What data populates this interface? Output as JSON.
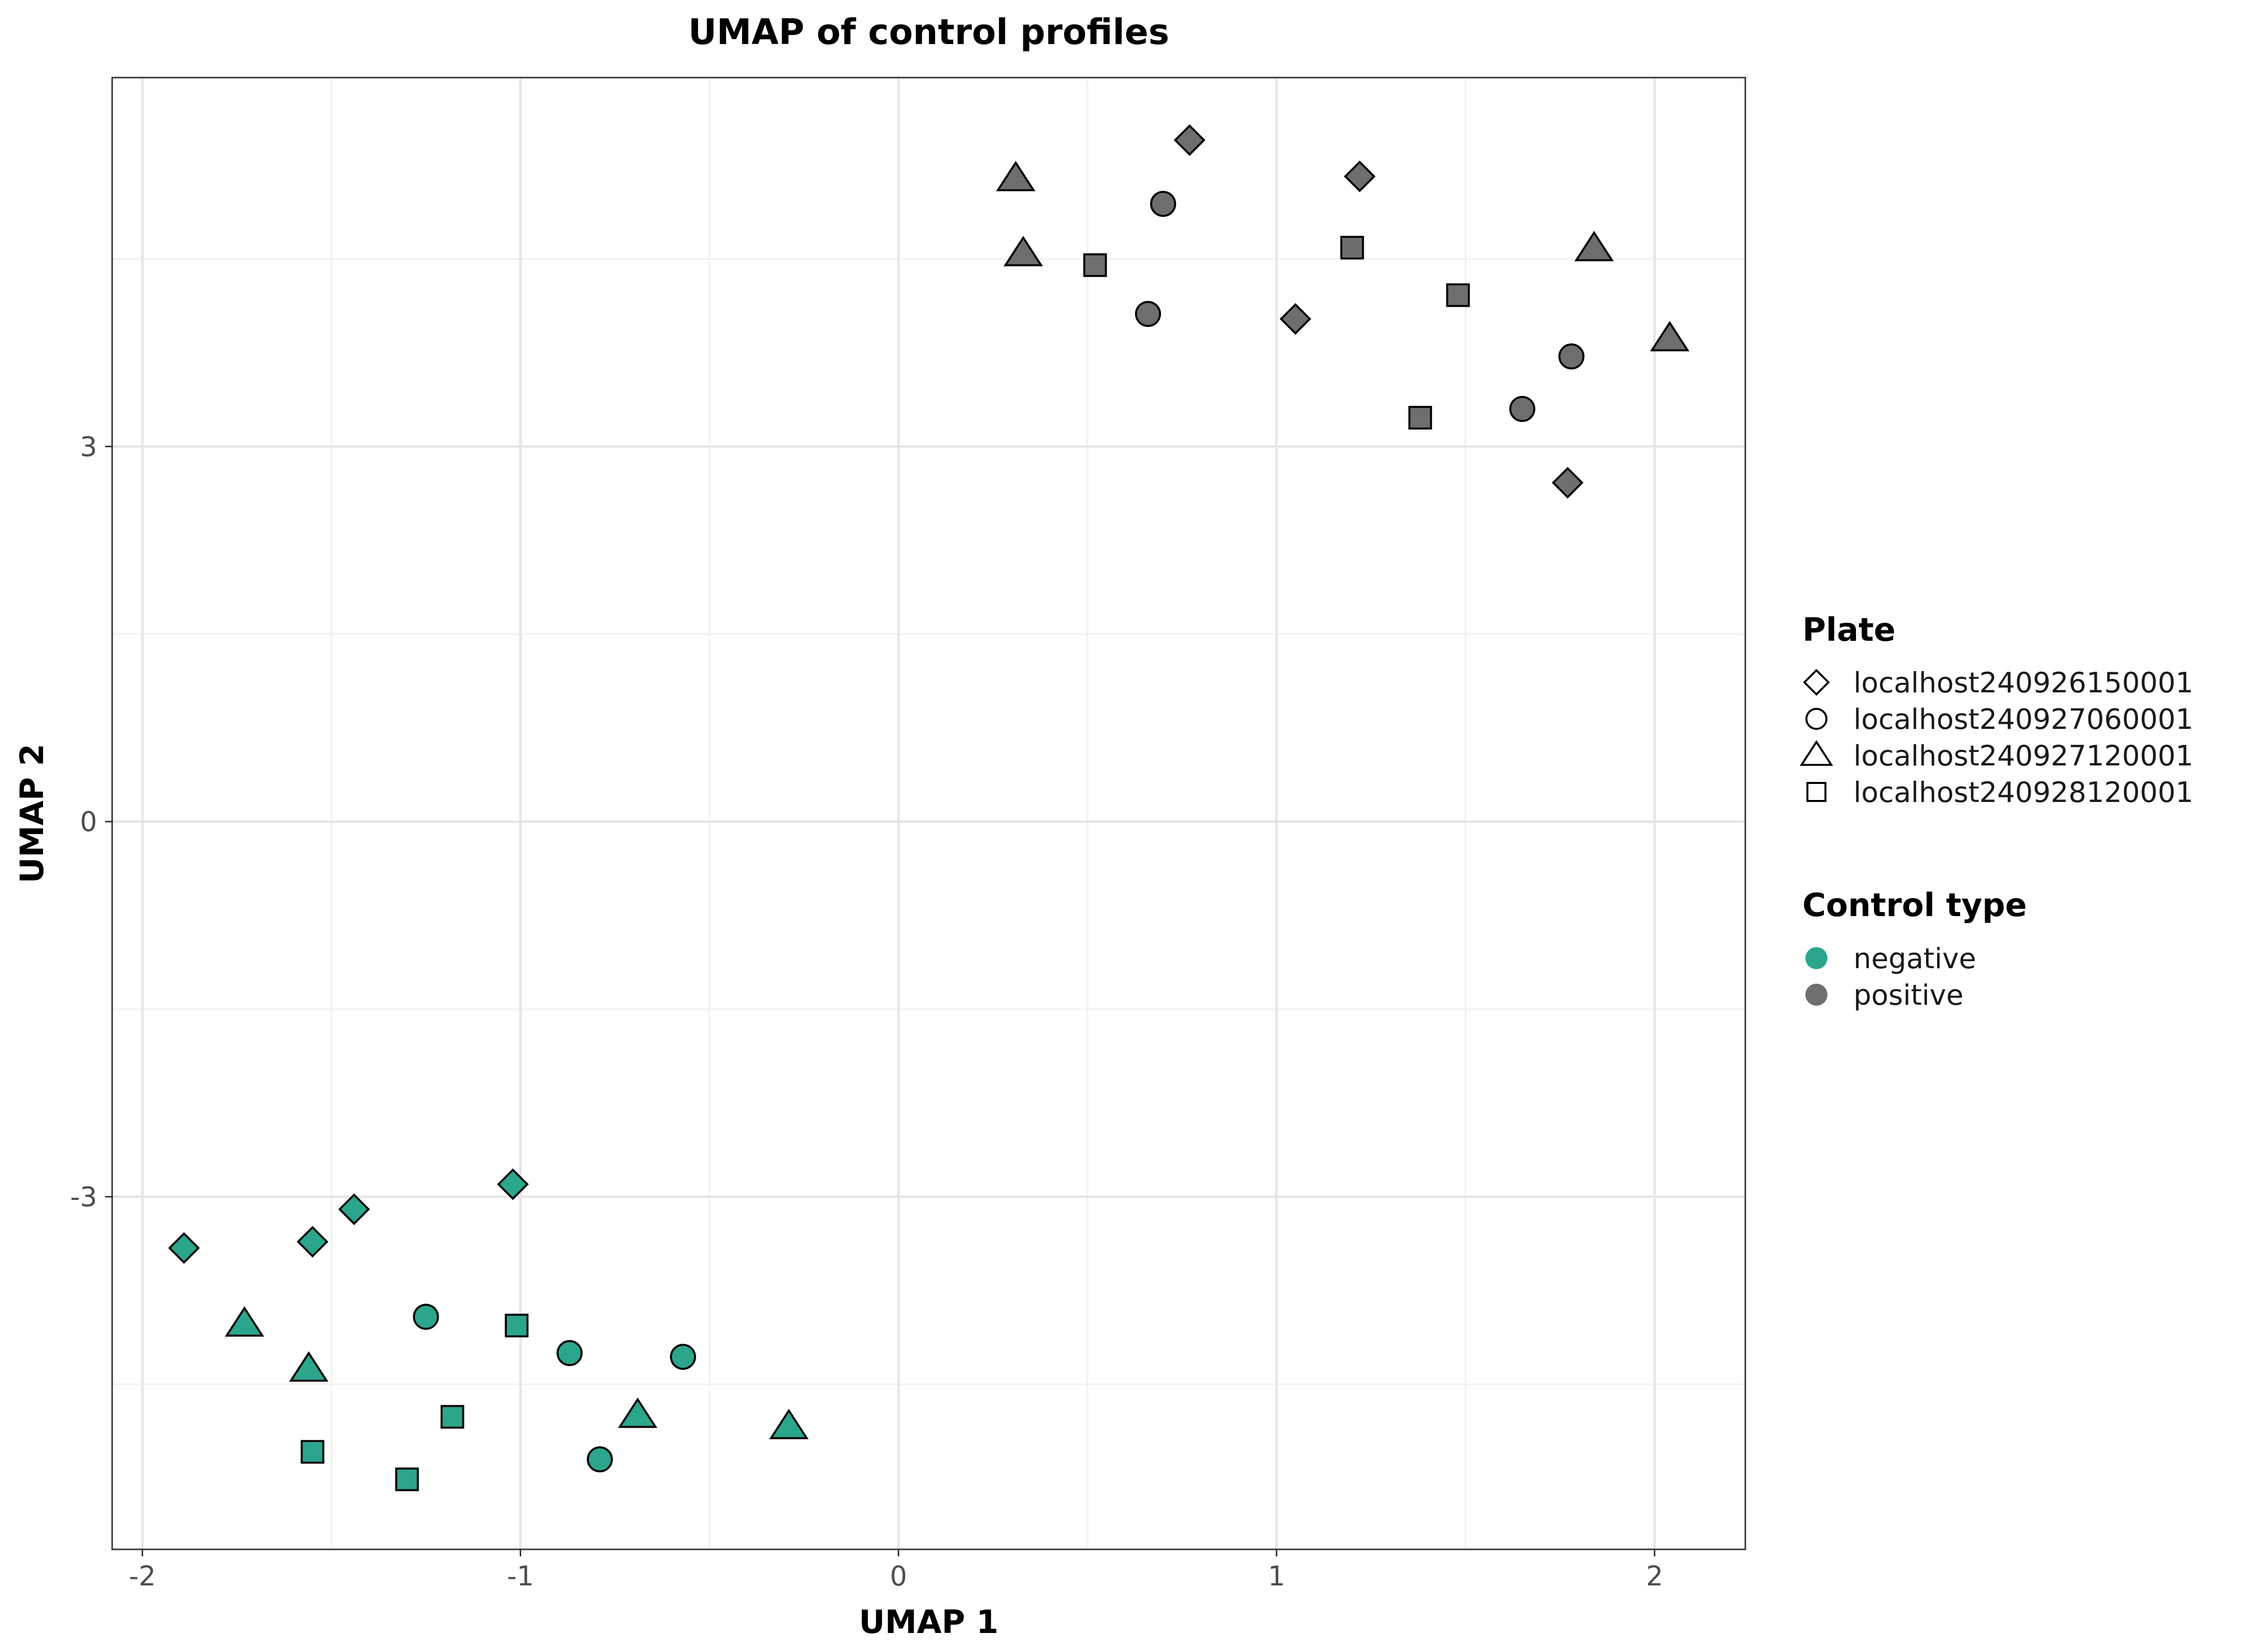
{
  "chart_data": {
    "type": "scatter",
    "title": "UMAP of control profiles",
    "xlabel": "UMAP 1",
    "ylabel": "UMAP 2",
    "xlim": [
      -2.08,
      2.24
    ],
    "ylim": [
      -5.82,
      5.95
    ],
    "x_ticks": [
      -2,
      -1,
      0,
      1,
      2
    ],
    "y_ticks": [
      -3,
      0,
      3
    ],
    "x_tick_labels": [
      "-2",
      "-1",
      "0",
      "1",
      "2"
    ],
    "y_tick_labels": [
      "-3",
      "0",
      "3"
    ],
    "grid": true,
    "legend_position": "right",
    "shape_legend": {
      "title": "Plate",
      "items": [
        {
          "label": "localhost240926150001",
          "shape": "diamond"
        },
        {
          "label": "localhost240927060001",
          "shape": "circle"
        },
        {
          "label": "localhost240927120001",
          "shape": "triangle"
        },
        {
          "label": "localhost240928120001",
          "shape": "square"
        }
      ]
    },
    "color_legend": {
      "title": "Control type",
      "items": [
        {
          "label": "negative",
          "color": "#2ca58d"
        },
        {
          "label": "positive",
          "color": "#6e6e6e"
        }
      ]
    },
    "points": [
      {
        "x": 0.77,
        "y": 5.45,
        "plate": "localhost240926150001",
        "control": "positive"
      },
      {
        "x": 1.22,
        "y": 5.16,
        "plate": "localhost240926150001",
        "control": "positive"
      },
      {
        "x": 1.05,
        "y": 4.02,
        "plate": "localhost240926150001",
        "control": "positive"
      },
      {
        "x": 1.77,
        "y": 2.71,
        "plate": "localhost240926150001",
        "control": "positive"
      },
      {
        "x": 0.7,
        "y": 4.94,
        "plate": "localhost240927060001",
        "control": "positive"
      },
      {
        "x": 0.66,
        "y": 4.06,
        "plate": "localhost240927060001",
        "control": "positive"
      },
      {
        "x": 1.78,
        "y": 3.72,
        "plate": "localhost240927060001",
        "control": "positive"
      },
      {
        "x": 1.65,
        "y": 3.3,
        "plate": "localhost240927060001",
        "control": "positive"
      },
      {
        "x": 0.31,
        "y": 5.14,
        "plate": "localhost240927120001",
        "control": "positive"
      },
      {
        "x": 0.33,
        "y": 4.54,
        "plate": "localhost240927120001",
        "control": "positive"
      },
      {
        "x": 1.84,
        "y": 4.58,
        "plate": "localhost240927120001",
        "control": "positive"
      },
      {
        "x": 2.04,
        "y": 3.86,
        "plate": "localhost240927120001",
        "control": "positive"
      },
      {
        "x": 0.52,
        "y": 4.45,
        "plate": "localhost240928120001",
        "control": "positive"
      },
      {
        "x": 1.2,
        "y": 4.59,
        "plate": "localhost240928120001",
        "control": "positive"
      },
      {
        "x": 1.48,
        "y": 4.21,
        "plate": "localhost240928120001",
        "control": "positive"
      },
      {
        "x": 1.38,
        "y": 3.23,
        "plate": "localhost240928120001",
        "control": "positive"
      },
      {
        "x": -1.89,
        "y": -3.41,
        "plate": "localhost240926150001",
        "control": "negative"
      },
      {
        "x": -1.55,
        "y": -3.36,
        "plate": "localhost240926150001",
        "control": "negative"
      },
      {
        "x": -1.44,
        "y": -3.1,
        "plate": "localhost240926150001",
        "control": "negative"
      },
      {
        "x": -1.02,
        "y": -2.9,
        "plate": "localhost240926150001",
        "control": "negative"
      },
      {
        "x": -1.25,
        "y": -3.96,
        "plate": "localhost240927060001",
        "control": "negative"
      },
      {
        "x": -0.87,
        "y": -4.25,
        "plate": "localhost240927060001",
        "control": "negative"
      },
      {
        "x": -0.57,
        "y": -4.28,
        "plate": "localhost240927060001",
        "control": "negative"
      },
      {
        "x": -0.79,
        "y": -5.1,
        "plate": "localhost240927060001",
        "control": "negative"
      },
      {
        "x": -1.73,
        "y": -4.02,
        "plate": "localhost240927120001",
        "control": "negative"
      },
      {
        "x": -1.56,
        "y": -4.38,
        "plate": "localhost240927120001",
        "control": "negative"
      },
      {
        "x": -0.69,
        "y": -4.75,
        "plate": "localhost240927120001",
        "control": "negative"
      },
      {
        "x": -0.29,
        "y": -4.84,
        "plate": "localhost240927120001",
        "control": "negative"
      },
      {
        "x": -1.01,
        "y": -4.03,
        "plate": "localhost240928120001",
        "control": "negative"
      },
      {
        "x": -1.18,
        "y": -4.76,
        "plate": "localhost240928120001",
        "control": "negative"
      },
      {
        "x": -1.55,
        "y": -5.04,
        "plate": "localhost240928120001",
        "control": "negative"
      },
      {
        "x": -1.3,
        "y": -5.26,
        "plate": "localhost240928120001",
        "control": "negative"
      }
    ]
  }
}
